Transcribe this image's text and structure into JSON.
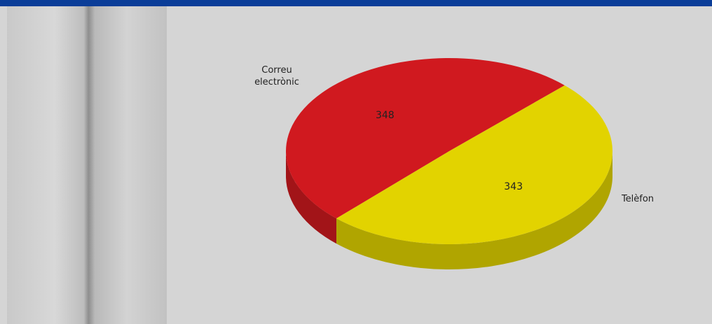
{
  "chart_data": {
    "type": "pie",
    "categories": [
      "Correu electrònic",
      "Telèfon"
    ],
    "values": [
      348,
      343
    ],
    "colors": [
      "#d0191f",
      "#e2d300"
    ]
  }
}
